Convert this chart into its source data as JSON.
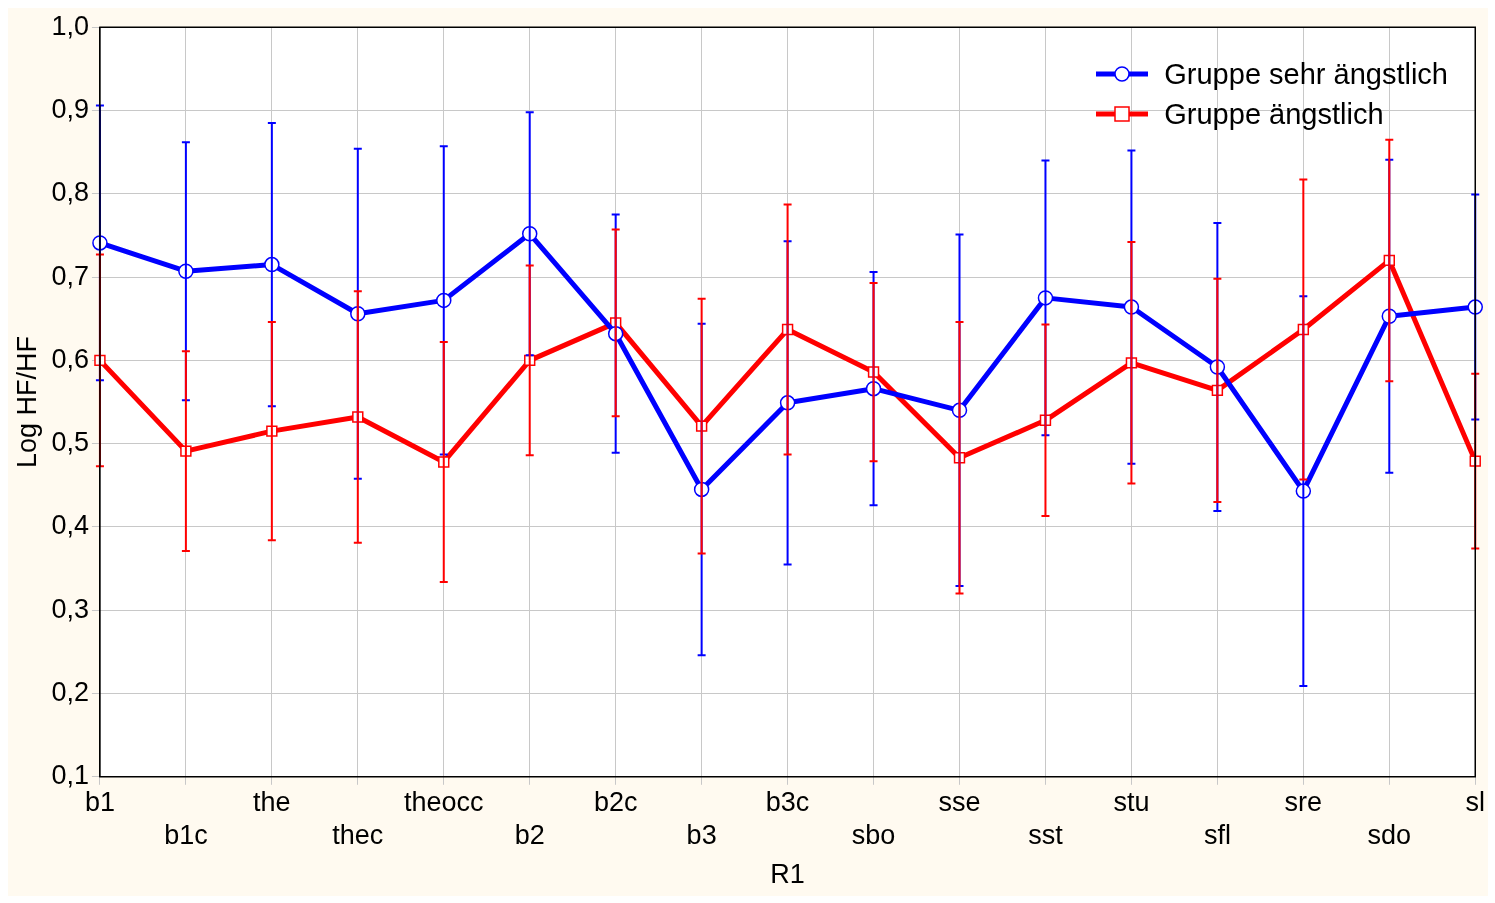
{
  "chart_data": {
    "type": "line",
    "xlabel": "R1",
    "ylabel": "Log HF/HF",
    "categories": [
      "b1",
      "b1c",
      "the",
      "thec",
      "theocc",
      "b2",
      "b2c",
      "b3",
      "b3c",
      "sbo",
      "sse",
      "sst",
      "stu",
      "sfl",
      "sre",
      "sdo",
      "sl"
    ],
    "series": [
      {
        "name": "Gruppe sehr ängstlich",
        "color": "#0000ff",
        "marker": "circle",
        "values": [
          0.741,
          0.707,
          0.715,
          0.656,
          0.672,
          0.752,
          0.632,
          0.445,
          0.549,
          0.566,
          0.54,
          0.675,
          0.664,
          0.592,
          0.443,
          0.653,
          0.664
        ],
        "errors": [
          0.165,
          0.155,
          0.17,
          0.198,
          0.185,
          0.146,
          0.143,
          0.199,
          0.194,
          0.14,
          0.211,
          0.165,
          0.188,
          0.173,
          0.234,
          0.188,
          0.135
        ]
      },
      {
        "name": "Gruppe ängstlich",
        "color": "#ff0000",
        "marker": "square",
        "values": [
          0.6,
          0.491,
          0.515,
          0.532,
          0.478,
          0.6,
          0.645,
          0.521,
          0.637,
          0.586,
          0.483,
          0.528,
          0.597,
          0.564,
          0.637,
          0.72,
          0.479
        ],
        "errors": [
          0.127,
          0.12,
          0.131,
          0.151,
          0.144,
          0.114,
          0.112,
          0.153,
          0.15,
          0.107,
          0.163,
          0.115,
          0.145,
          0.134,
          0.18,
          0.145,
          0.105
        ]
      }
    ],
    "ylim": [
      0.1,
      1.0
    ],
    "yticks": [
      {
        "value": 0.1,
        "label": "0,1"
      },
      {
        "value": 0.2,
        "label": "0,2"
      },
      {
        "value": 0.3,
        "label": "0,3"
      },
      {
        "value": 0.4,
        "label": "0,4"
      },
      {
        "value": 0.5,
        "label": "0,5"
      },
      {
        "value": 0.6,
        "label": "0,6"
      },
      {
        "value": 0.7,
        "label": "0,7"
      },
      {
        "value": 0.8,
        "label": "0,8"
      },
      {
        "value": 0.9,
        "label": "0,9"
      },
      {
        "value": 1.0,
        "label": "1,0"
      }
    ],
    "grid": true,
    "legend": "top right",
    "line_style": "solid"
  }
}
